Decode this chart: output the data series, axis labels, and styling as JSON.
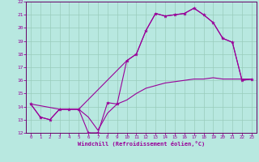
{
  "xlabel": "Windchill (Refroidissement éolien,°C)",
  "bg_color": "#b8e8e0",
  "grid_color": "#99ccbb",
  "line_color": "#990099",
  "spine_color": "#660066",
  "xlim": [
    -0.5,
    23.5
  ],
  "ylim": [
    12,
    22
  ],
  "xticks": [
    0,
    1,
    2,
    3,
    4,
    5,
    6,
    7,
    8,
    9,
    10,
    11,
    12,
    13,
    14,
    15,
    16,
    17,
    18,
    19,
    20,
    21,
    22,
    23
  ],
  "yticks": [
    12,
    13,
    14,
    15,
    16,
    17,
    18,
    19,
    20,
    21,
    22
  ],
  "series": [
    {
      "x": [
        0,
        1,
        2,
        3,
        4,
        5,
        6,
        7,
        8,
        9,
        10,
        11,
        12,
        13,
        14,
        15,
        16,
        17,
        18,
        19,
        20,
        21,
        22,
        23
      ],
      "y": [
        14.2,
        13.2,
        13.0,
        13.8,
        13.8,
        13.8,
        12.0,
        12.0,
        14.3,
        14.2,
        17.5,
        18.0,
        19.8,
        21.1,
        20.9,
        21.0,
        21.1,
        21.5,
        21.0,
        20.4,
        19.2,
        18.9,
        16.0,
        16.1
      ],
      "marker": true
    },
    {
      "x": [
        0,
        3,
        4,
        5,
        10,
        11,
        12,
        13,
        14,
        15,
        16,
        17,
        18,
        19,
        20,
        21,
        22,
        23
      ],
      "y": [
        14.2,
        13.8,
        13.8,
        13.8,
        17.5,
        18.0,
        19.8,
        21.1,
        20.9,
        21.0,
        21.1,
        21.5,
        21.0,
        20.4,
        19.2,
        18.9,
        16.0,
        16.1
      ],
      "marker": false
    },
    {
      "x": [
        0,
        1,
        2,
        3,
        4,
        5,
        6,
        7,
        8,
        9,
        10,
        11,
        12,
        13,
        14,
        15,
        16,
        17,
        18,
        19,
        20,
        21,
        22,
        23
      ],
      "y": [
        14.2,
        13.2,
        13.0,
        13.8,
        13.8,
        13.8,
        13.2,
        12.2,
        13.5,
        14.2,
        14.5,
        15.0,
        15.4,
        15.6,
        15.8,
        15.9,
        16.0,
        16.1,
        16.1,
        16.2,
        16.1,
        16.1,
        16.1,
        16.1
      ],
      "marker": false
    }
  ]
}
